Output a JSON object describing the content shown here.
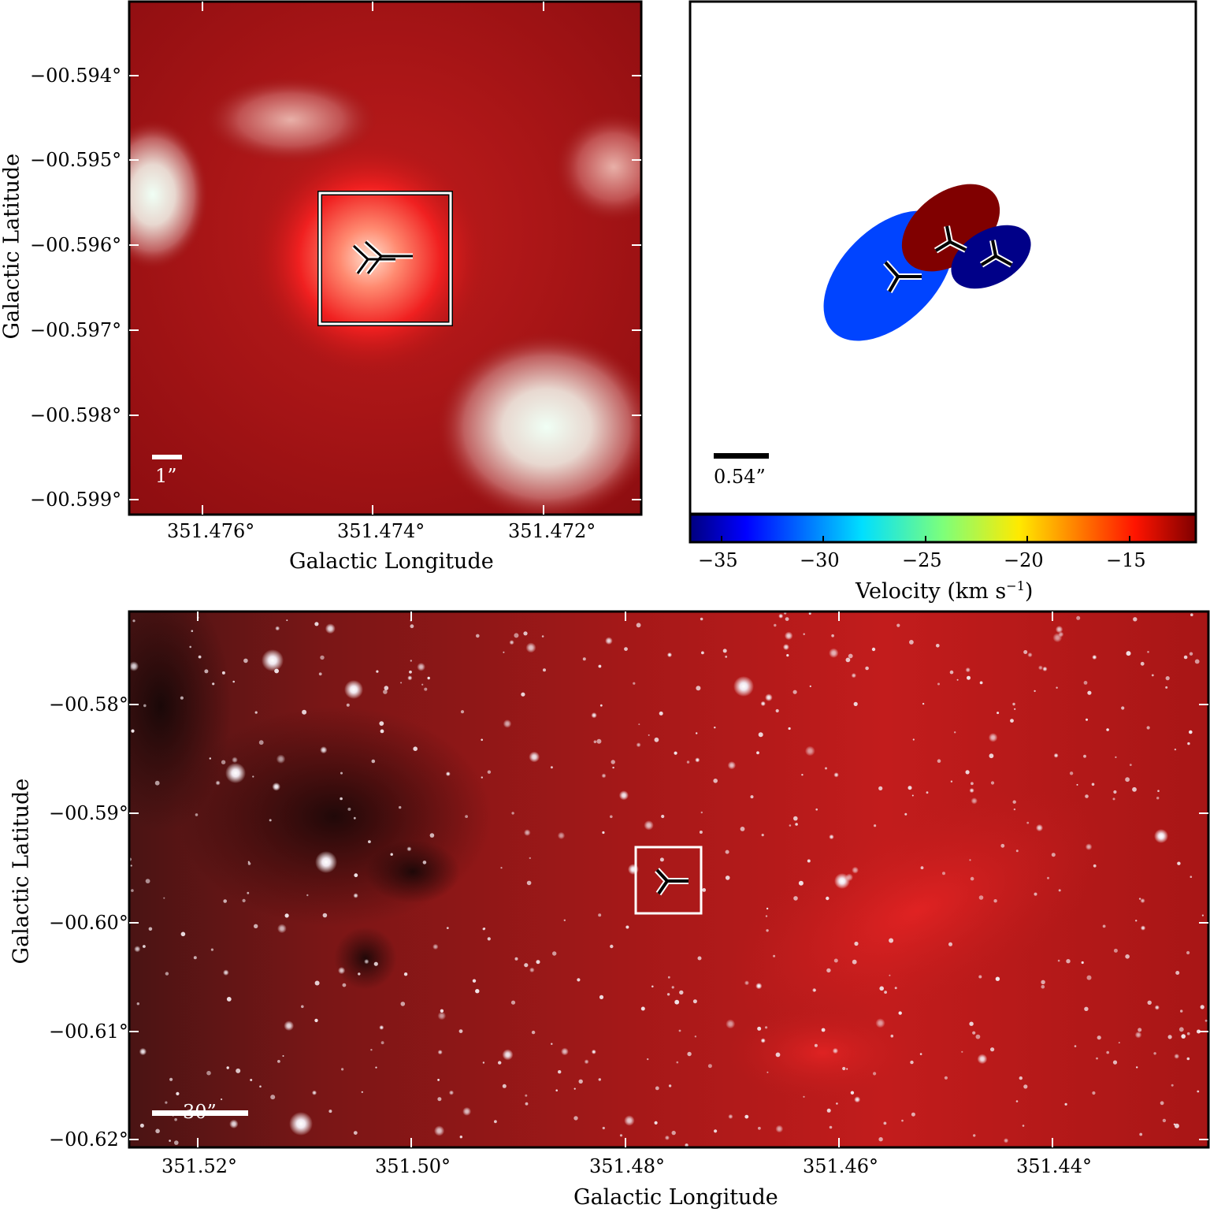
{
  "panel_top_left": {
    "ylabel": "Galactic Latitude",
    "xlabel": "Galactic Longitude",
    "yticks": [
      "−00.594°",
      "−00.595°",
      "−00.596°",
      "−00.597°",
      "−00.598°",
      "−00.599°"
    ],
    "xticks": [
      "351.476°",
      "351.474°",
      "351.472°"
    ],
    "scalebar": "1”"
  },
  "panel_top_right": {
    "scalebar": "0.54”",
    "colorbar": {
      "label": "Velocity (km s",
      "label_sup": "−1",
      "label_end": ")",
      "ticks": [
        "−35",
        "−30",
        "−25",
        "−20",
        "−15"
      ],
      "range": [
        -36.3,
        -11.5
      ],
      "colormap": "jet"
    },
    "components": [
      {
        "velocity": -34.0,
        "color": "#0044ff"
      },
      {
        "velocity": -12.0,
        "color": "#800000"
      },
      {
        "velocity": -36.0,
        "color": "#000088"
      }
    ]
  },
  "panel_bottom": {
    "ylabel": "Galactic Latitude",
    "xlabel": "Galactic Longitude",
    "yticks": [
      "−00.58°",
      "−00.59°",
      "−00.60°",
      "−00.61°",
      "−00.62°"
    ],
    "xticks": [
      "351.52°",
      "351.50°",
      "351.48°",
      "351.46°",
      "351.44°"
    ],
    "scalebar": "30”"
  },
  "colors": {
    "background_red": "#a81414",
    "frame": "#000000",
    "overlay_white": "#ffffff"
  }
}
